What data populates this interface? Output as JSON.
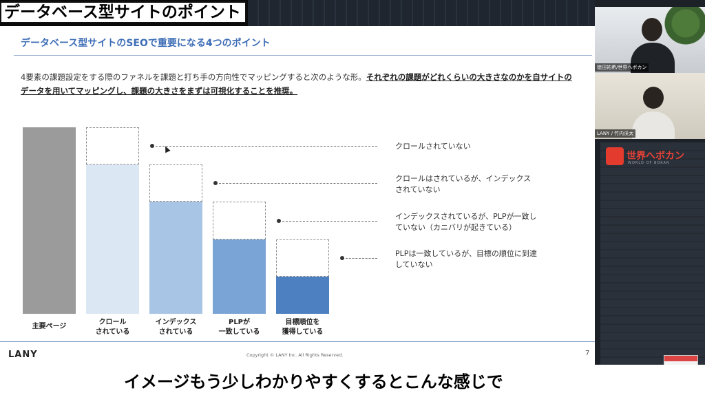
{
  "banner": {
    "title": "データベース型サイトのポイント"
  },
  "slide": {
    "title": "データベース型サイトのSEOで重要になる4つのポイント",
    "description_plain": "4要素の課題設定をする際のファネルを課題と打ち手の方向性でマッピングすると次のような形。",
    "description_emphasis": "それぞれの課題がどれくらいの大きさなのかを自サイトのデータを用いてマッピングし、課題の大きさをまずは可視化することを推奨。",
    "footer_brand": "LANY",
    "copyright": "Copyright © LANY Inc. All Rights Reserved.",
    "page_number": "7"
  },
  "chart_data": {
    "type": "bar",
    "categories": [
      "主要ページ",
      "クロール\nされている",
      "インデックス\nされている",
      "PLPが\n一致している",
      "目標順位を\n獲得している"
    ],
    "category_lines": [
      [
        "主要ページ"
      ],
      [
        "クロール",
        "されている"
      ],
      [
        "インデックス",
        "されている"
      ],
      [
        "PLPが",
        "一致している"
      ],
      [
        "目標順位を",
        "獲得している"
      ]
    ],
    "values": [
      100,
      80,
      60,
      40,
      20
    ],
    "gaps": [
      null,
      20,
      20,
      20,
      20
    ],
    "ylim": [
      0,
      100
    ],
    "colors": [
      "#9b9b9b",
      "#dce7f4",
      "#a9c5e6",
      "#7aa4d6",
      "#4c80c0"
    ],
    "gap_labels": [
      [
        "クロールされていない"
      ],
      [
        "クロールはされているが、インデックス",
        "されていない"
      ],
      [
        "インデックスされているが、PLPが一致し",
        "ていない（カニバリが起きている）"
      ],
      [
        "PLPは一致しているが、目標の順位に到達",
        "していない"
      ]
    ]
  },
  "webcams": [
    {
      "name": "徳田祐希/世界ヘボカン"
    },
    {
      "name": "LANY / 竹内渓太"
    }
  ],
  "side_panel": {
    "logo_text": "世界へボカン",
    "logo_sub": "WORLD OF BOKAN"
  },
  "subtitle": {
    "text": "イメージもう少しわかりやすくするとこんな感じで"
  }
}
